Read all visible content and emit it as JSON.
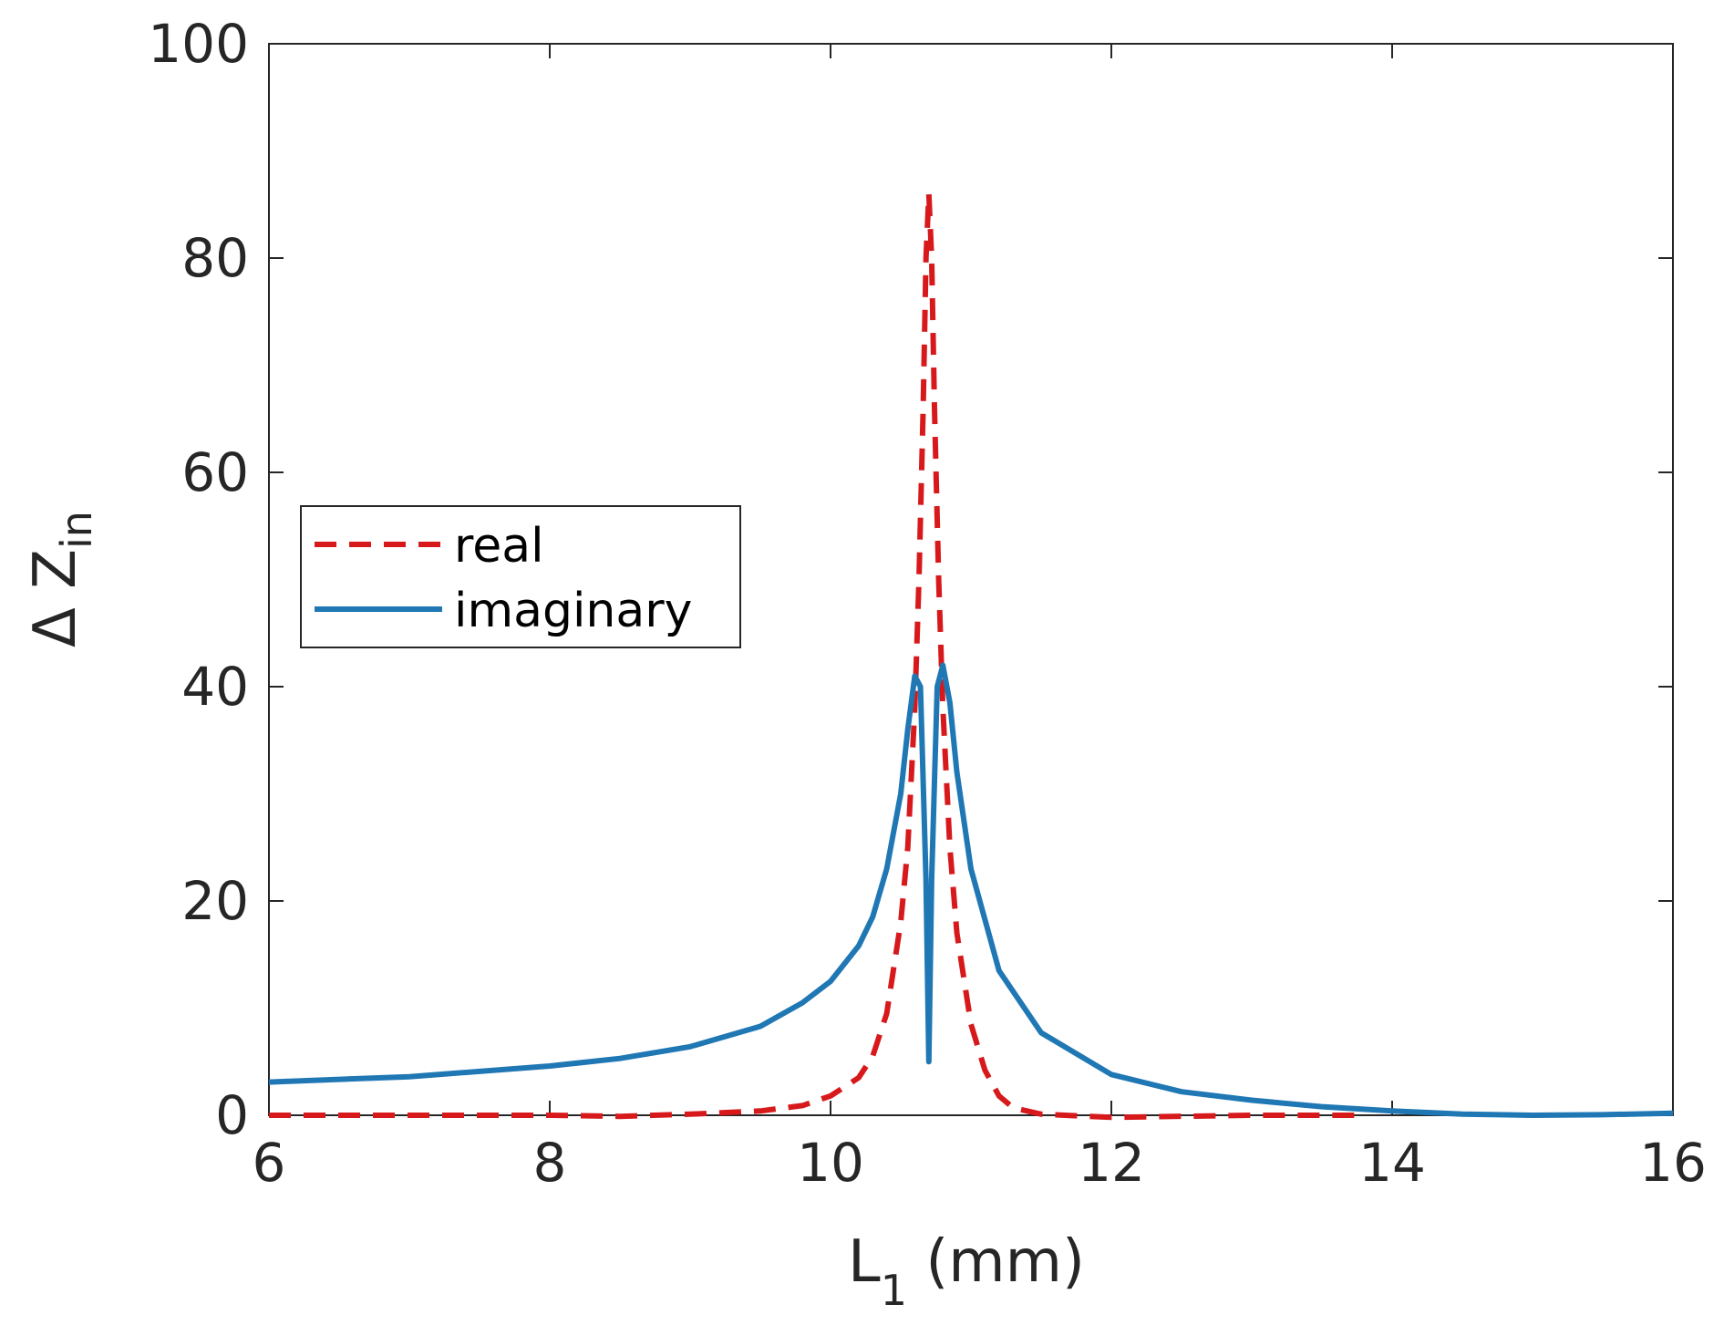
{
  "chart_data": {
    "type": "line",
    "title": "",
    "xlabel": {
      "main": "L",
      "sub": "1",
      "unit": " (mm)"
    },
    "ylabel": {
      "main": "Δ Z",
      "sub": "in"
    },
    "xlim": [
      6,
      16
    ],
    "ylim": [
      0,
      100
    ],
    "x_ticks": [
      6,
      8,
      10,
      12,
      14,
      16
    ],
    "y_ticks": [
      0,
      20,
      40,
      60,
      80,
      100
    ],
    "x_tick_labels": [
      "6",
      "8",
      "10",
      "12",
      "14",
      "16"
    ],
    "y_tick_labels": [
      "0",
      "20",
      "40",
      "60",
      "80",
      "100"
    ],
    "grid": false,
    "legend_position": "center-left",
    "series": [
      {
        "name": "real",
        "style": "dashed",
        "color": "#d7191c",
        "points": [
          [
            6,
            0
          ],
          [
            7,
            0
          ],
          [
            8,
            0
          ],
          [
            8.5,
            -0.1
          ],
          [
            9,
            0.1
          ],
          [
            9.5,
            0.4
          ],
          [
            9.8,
            0.9
          ],
          [
            10,
            1.8
          ],
          [
            10.2,
            3.5
          ],
          [
            10.3,
            5.5
          ],
          [
            10.4,
            9.5
          ],
          [
            10.5,
            18
          ],
          [
            10.55,
            25
          ],
          [
            10.6,
            38
          ],
          [
            10.63,
            50
          ],
          [
            10.66,
            66
          ],
          [
            10.68,
            80
          ],
          [
            10.7,
            86
          ],
          [
            10.72,
            80
          ],
          [
            10.74,
            66
          ],
          [
            10.77,
            50
          ],
          [
            10.8,
            38
          ],
          [
            10.85,
            25
          ],
          [
            10.9,
            17
          ],
          [
            11,
            8.5
          ],
          [
            11.1,
            4.2
          ],
          [
            11.2,
            1.8
          ],
          [
            11.3,
            0.7
          ],
          [
            11.5,
            0.1
          ],
          [
            12,
            -0.2
          ],
          [
            13,
            0
          ],
          [
            13.8,
            0
          ]
        ]
      },
      {
        "name": "imaginary",
        "style": "solid",
        "color": "#1f77b4",
        "points": [
          [
            6,
            3.1
          ],
          [
            7,
            3.6
          ],
          [
            8,
            4.6
          ],
          [
            8.5,
            5.3
          ],
          [
            9,
            6.4
          ],
          [
            9.5,
            8.3
          ],
          [
            9.8,
            10.5
          ],
          [
            10,
            12.5
          ],
          [
            10.2,
            15.8
          ],
          [
            10.3,
            18.5
          ],
          [
            10.4,
            23
          ],
          [
            10.5,
            30
          ],
          [
            10.55,
            36
          ],
          [
            10.6,
            41
          ],
          [
            10.64,
            40
          ],
          [
            10.68,
            22
          ],
          [
            10.7,
            5
          ],
          [
            10.72,
            22
          ],
          [
            10.76,
            40
          ],
          [
            10.8,
            42
          ],
          [
            10.85,
            38.5
          ],
          [
            10.9,
            32
          ],
          [
            11,
            23
          ],
          [
            11.2,
            13.5
          ],
          [
            11.5,
            7.7
          ],
          [
            12,
            3.8
          ],
          [
            12.5,
            2.2
          ],
          [
            13,
            1.4
          ],
          [
            13.5,
            0.8
          ],
          [
            14,
            0.4
          ],
          [
            14.5,
            0.1
          ],
          [
            15,
            0
          ],
          [
            15.5,
            0.05
          ],
          [
            16,
            0.2
          ]
        ]
      }
    ]
  }
}
